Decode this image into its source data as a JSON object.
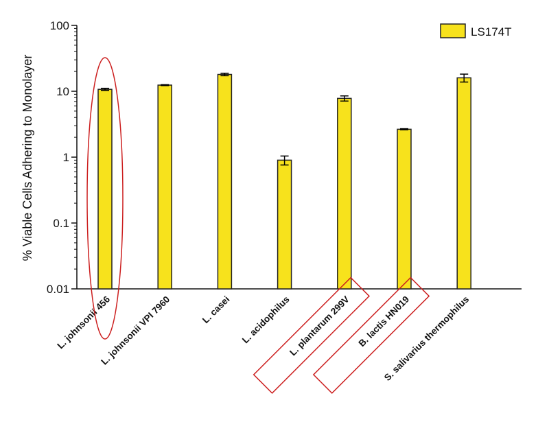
{
  "colors": {
    "bar_fill": "#f7e21c",
    "bar_stroke": "#222222",
    "annotation": "#cc1f1f",
    "axis": "#111111"
  },
  "chart_data": {
    "type": "bar",
    "ylabel": "% Viable Cells Adhering to Monolayer",
    "y_scale": "log",
    "ylim": [
      0.01,
      100
    ],
    "y_ticks": [
      {
        "value": 0.01,
        "label": "0.01"
      },
      {
        "value": 0.1,
        "label": "0.1"
      },
      {
        "value": 1,
        "label": "1"
      },
      {
        "value": 10,
        "label": "10"
      },
      {
        "value": 100,
        "label": "100"
      }
    ],
    "categories": [
      "L. johnsonii 456",
      "L. johnsonii VPI 7960",
      "L. casei",
      "L. acidophilus",
      "L. plantarum 299V",
      "B. lactis HN019",
      "S. salivarius thermophilus"
    ],
    "series": [
      {
        "name": "LS174T",
        "values": [
          10.7,
          12.4,
          18.0,
          0.9,
          7.8,
          2.65,
          16.0
        ],
        "errors": [
          0.4,
          0.2,
          0.8,
          0.14,
          0.7,
          0.05,
          2.2
        ]
      }
    ],
    "legend": {
      "position": "top-right"
    },
    "grid": false,
    "annotations": [
      {
        "shape": "ellipse",
        "target": "L. johnsonii 456"
      },
      {
        "shape": "rectangle",
        "target": "L. plantarum 299V"
      },
      {
        "shape": "rectangle",
        "target": "B. lactis HN019"
      }
    ]
  }
}
